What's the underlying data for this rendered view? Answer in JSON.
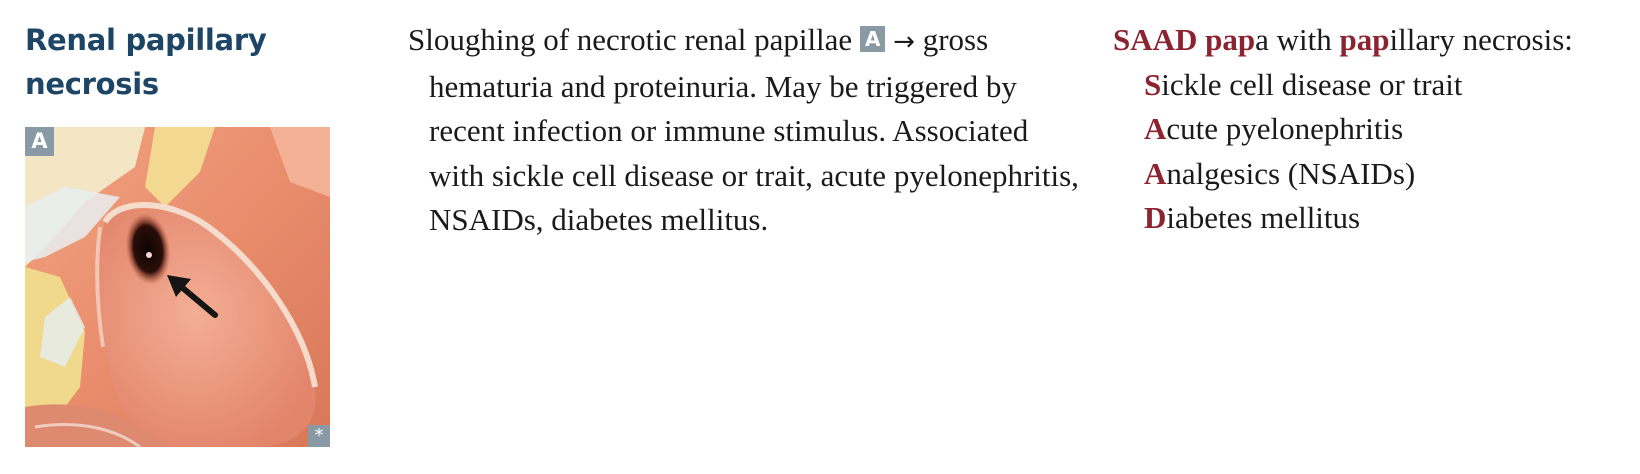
{
  "heading": {
    "line1": "Renal papillary",
    "line2": "necrosis"
  },
  "figure": {
    "label": "A",
    "credit_mark": "*",
    "content": "gross specimen photo of kidney showing dark necrotic papilla with arrow"
  },
  "description": {
    "part1": "Sloughing of necrotic renal papillae ",
    "label_ref": "A",
    "arrow": "→",
    "part2": " gross hematuria and proteinuria. May be triggered by recent infection or immune stimulus. Associated with sickle cell disease or trait, acute pyelonephritis, NSAIDs, diabetes mellitus."
  },
  "mnemonic": {
    "title_hl1": "SAAD",
    "title_sp1": " ",
    "title_hl2": "pap",
    "title_rest1": "a with ",
    "title_hl3": "pap",
    "title_rest2": "illary necrosis:",
    "items": [
      {
        "letter": "S",
        "rest": "ickle cell disease or trait"
      },
      {
        "letter": "A",
        "rest": "cute pyelonephritis"
      },
      {
        "letter": "A",
        "rest": "nalgesics (NSAIDs)"
      },
      {
        "letter": "D",
        "rest": "iabetes mellitus"
      }
    ]
  },
  "colors": {
    "heading": "#1d4666",
    "mnemonic_highlight": "#8b2330",
    "label_background": "#8a9aa4"
  }
}
